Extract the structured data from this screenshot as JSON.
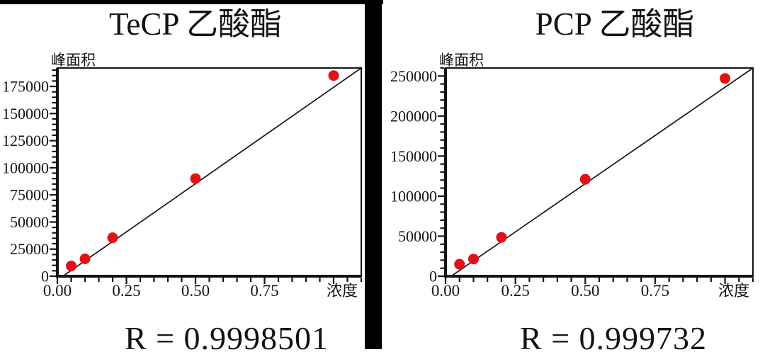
{
  "page": {
    "background": "#ffffff",
    "artifact_bar_color": "#000000"
  },
  "panels": [
    {
      "title": "TeCP 乙酸酯",
      "r_label": "R = 0.9998501"
    },
    {
      "title": "PCP 乙酸酯",
      "r_label": "R = 0.999732"
    }
  ],
  "chart_data": [
    {
      "type": "scatter",
      "title": "TeCP 乙酸酯",
      "xlabel": "浓度",
      "ylabel": "峰面积",
      "x": [
        0.05,
        0.1,
        0.2,
        0.5,
        1.0
      ],
      "y": [
        9500,
        16000,
        35500,
        90000,
        185000
      ],
      "fit_line": {
        "x1": 0.02,
        "y1": 0,
        "x2": 1.1,
        "y2": 192000
      },
      "r": 0.9998501,
      "r_label": "R = 0.9998501",
      "xlim": [
        0,
        1.1
      ],
      "ylim": [
        0,
        192000
      ],
      "x_ticks": {
        "values": [
          0,
          0.25,
          0.5,
          0.75
        ],
        "labels": [
          "0.00",
          "0.25",
          "0.50",
          "0.75"
        ],
        "extra_major": [
          1.0
        ],
        "minor_step": 0.05
      },
      "y_ticks": {
        "values": [
          0,
          25000,
          50000,
          75000,
          100000,
          125000,
          150000,
          175000
        ],
        "labels": [
          "0",
          "25000",
          "50000",
          "75000",
          "100000",
          "125000",
          "150000",
          "175000"
        ],
        "extra_major": [],
        "minor_step": 5000
      },
      "grid": false,
      "legend": null,
      "marker_color": "#e41016",
      "line_color": "#141414"
    },
    {
      "type": "scatter",
      "title": "PCP 乙酸酯",
      "xlabel": "浓度",
      "ylabel": "峰面积",
      "x": [
        0.05,
        0.1,
        0.2,
        0.5,
        1.0
      ],
      "y": [
        15000,
        21500,
        48500,
        121000,
        247000
      ],
      "fit_line": {
        "x1": 0.02,
        "y1": 0,
        "x2": 1.1,
        "y2": 260000
      },
      "r": 0.999732,
      "r_label": "R = 0.999732",
      "xlim": [
        0,
        1.1
      ],
      "ylim": [
        0,
        260000
      ],
      "x_ticks": {
        "values": [
          0,
          0.25,
          0.5,
          0.75
        ],
        "labels": [
          "0.00",
          "0.25",
          "0.50",
          "0.75"
        ],
        "extra_major": [
          1.0
        ],
        "minor_step": 0.05
      },
      "y_ticks": {
        "values": [
          0,
          50000,
          100000,
          150000,
          200000,
          250000
        ],
        "labels": [
          "0",
          "50000",
          "100000",
          "150000",
          "200000",
          "250000"
        ],
        "extra_major": [],
        "minor_step": 10000
      },
      "grid": false,
      "legend": null,
      "marker_color": "#e41016",
      "line_color": "#141414"
    }
  ]
}
